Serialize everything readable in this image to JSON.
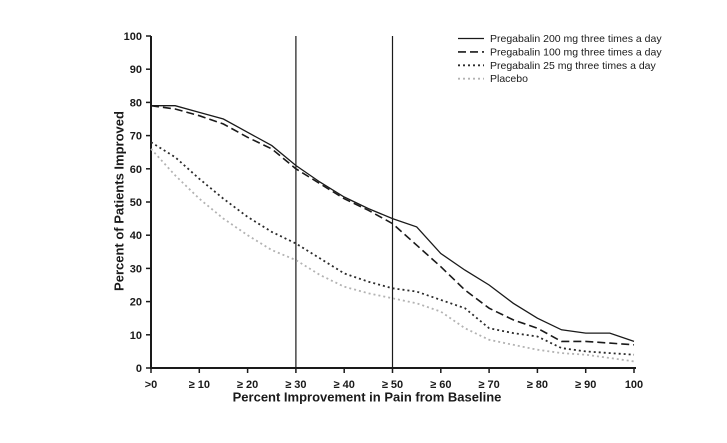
{
  "figure": {
    "background": "#ffffff"
  },
  "chart_data": {
    "type": "line",
    "title": "",
    "xlabel": "Percent Improvement in Pain from Baseline",
    "ylabel": "Percent of Patients Improved",
    "xlim": [
      0,
      100
    ],
    "ylim": [
      0,
      100
    ],
    "grid": false,
    "legend_position": "top-right",
    "axis_color": "#1a1a1a",
    "reference_line_color": "#1a1a1a",
    "reference_lines_x": [
      30,
      50
    ],
    "x_tick_values": [
      0,
      10,
      20,
      30,
      40,
      50,
      60,
      70,
      80,
      90,
      100
    ],
    "x_tick_labels": [
      ">0",
      "≥ 10",
      "≥ 20",
      "≥ 30",
      "≥ 40",
      "≥ 50",
      "≥ 60",
      "≥ 70",
      "≥ 80",
      "≥ 90",
      "100"
    ],
    "y_tick_values": [
      0,
      10,
      20,
      30,
      40,
      50,
      60,
      70,
      80,
      90,
      100
    ],
    "y_tick_labels": [
      "0",
      "10",
      "20",
      "30",
      "40",
      "50",
      "60",
      "70",
      "80",
      "90",
      "100"
    ],
    "x": [
      0,
      5,
      10,
      15,
      20,
      25,
      30,
      35,
      40,
      45,
      50,
      55,
      60,
      65,
      70,
      75,
      80,
      85,
      90,
      95,
      100
    ],
    "series": [
      {
        "name": "Pregabalin 200 mg three times a day",
        "line_style": "solid",
        "color": "#1a1a1a",
        "values": [
          79,
          79,
          77,
          75,
          71,
          67,
          61,
          56,
          51.5,
          48,
          45,
          42.5,
          34.5,
          29.5,
          25,
          19.5,
          15,
          11.5,
          10.5,
          10.5,
          8
        ]
      },
      {
        "name": "Pregabalin 100 mg three times a day",
        "line_style": "dashed",
        "color": "#1a1a1a",
        "values": [
          79,
          78,
          76,
          73.5,
          69.5,
          66,
          60,
          55.5,
          51,
          47.5,
          43.5,
          37,
          30.5,
          23.5,
          18,
          14.5,
          12,
          8,
          8,
          7.5,
          7
        ]
      },
      {
        "name": "Pregabalin 25 mg three times a day",
        "line_style": "dotted",
        "color": "#2b2b2b",
        "values": [
          68,
          63.5,
          57,
          51,
          45.5,
          41,
          37.5,
          33,
          28.5,
          26,
          24,
          23,
          20.5,
          18,
          12,
          10.5,
          9.5,
          6,
          5,
          4.5,
          4
        ]
      },
      {
        "name": "Placebo",
        "line_style": "dotted",
        "color": "#b3b3b3",
        "values": [
          66,
          58,
          51,
          45,
          40,
          35.5,
          32.5,
          28,
          24.5,
          22.5,
          21,
          19.5,
          17,
          12,
          8.5,
          7,
          5.5,
          4.5,
          4,
          3,
          2
        ]
      }
    ]
  }
}
